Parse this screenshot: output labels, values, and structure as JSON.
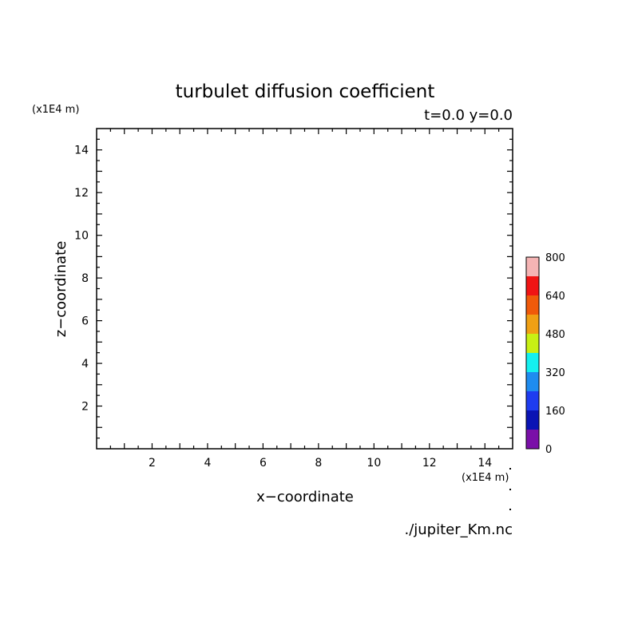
{
  "chart_data": {
    "type": "heatmap",
    "title": "turbulet diffusion coefficient",
    "subtitle": "t=0.0 y=0.0",
    "xlabel": "x−coordinate",
    "ylabel": "z−coordinate",
    "x_unit": "(x1E4 m)",
    "y_unit": "(x1E4 m)",
    "xlim": [
      0,
      15
    ],
    "ylim": [
      0,
      15
    ],
    "xticks": [
      2,
      4,
      6,
      8,
      10,
      12,
      14
    ],
    "yticks": [
      2,
      4,
      6,
      8,
      10,
      12,
      14
    ],
    "values": [],
    "grid": false,
    "colorbar": {
      "min": 0,
      "max": 800,
      "tick_labels": [
        0,
        160,
        320,
        480,
        640,
        800
      ],
      "colors": [
        "#7a10a8",
        "#0a14b4",
        "#1e3cf0",
        "#1e8cf0",
        "#14f0f0",
        "#c8f014",
        "#f0a014",
        "#f05a0a",
        "#f01414",
        "#f5b4b4"
      ]
    },
    "footer": "./jupiter_Km.nc"
  }
}
